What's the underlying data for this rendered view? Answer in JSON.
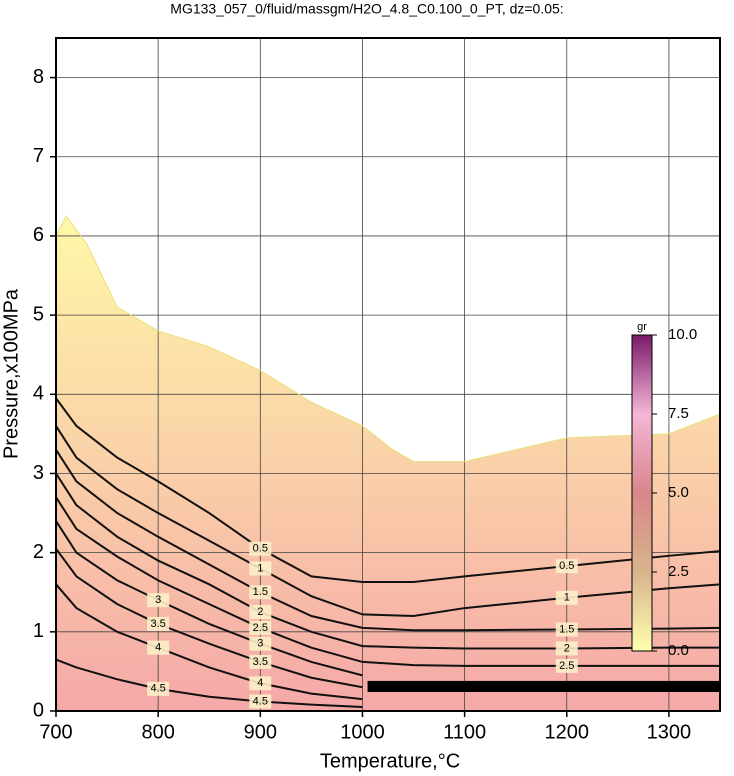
{
  "chart_data": {
    "type": "contour",
    "title": "MG133_057_0/fluid/massgm/H2O_4.8_C0.100_0_PT, dz=0.05:",
    "x_label": "Temperature,°C",
    "y_label": "Pressure,x100MPa",
    "xlim": [
      700,
      1350
    ],
    "ylim": [
      0,
      8.5
    ],
    "xticks": [
      700,
      800,
      900,
      1000,
      1100,
      1200,
      1300
    ],
    "yticks": [
      0,
      1,
      2,
      3,
      4,
      5,
      6,
      7,
      8
    ],
    "grid": true,
    "boundary": {
      "x": [
        700,
        710,
        730,
        760,
        800,
        850,
        900,
        950,
        1000,
        1030,
        1050,
        1100,
        1150,
        1200,
        1300,
        1350
      ],
      "y": [
        6.0,
        6.25,
        5.9,
        5.1,
        4.8,
        4.6,
        4.3,
        3.9,
        3.6,
        3.3,
        3.15,
        3.15,
        3.3,
        3.45,
        3.5,
        3.75
      ]
    },
    "band": {
      "x": [
        1005,
        1350
      ],
      "y": [
        0.24,
        0.38
      ]
    },
    "contours": [
      {
        "level": 0.5,
        "x": [
          700,
          720,
          760,
          800,
          850,
          900,
          950,
          1000,
          1050,
          1100,
          1200,
          1300,
          1350
        ],
        "y": [
          3.95,
          3.6,
          3.2,
          2.9,
          2.5,
          2.05,
          1.7,
          1.63,
          1.63,
          1.7,
          1.83,
          1.96,
          2.02
        ]
      },
      {
        "level": 1,
        "x": [
          700,
          720,
          760,
          800,
          850,
          900,
          950,
          1000,
          1050,
          1100,
          1200,
          1300,
          1350
        ],
        "y": [
          3.6,
          3.2,
          2.8,
          2.5,
          2.15,
          1.8,
          1.45,
          1.22,
          1.2,
          1.3,
          1.43,
          1.55,
          1.6
        ]
      },
      {
        "level": 1.5,
        "x": [
          700,
          720,
          760,
          800,
          850,
          900,
          950,
          1000,
          1050,
          1100,
          1200,
          1300,
          1350
        ],
        "y": [
          3.3,
          2.9,
          2.5,
          2.2,
          1.85,
          1.5,
          1.2,
          1.05,
          1.02,
          1.02,
          1.03,
          1.04,
          1.05
        ]
      },
      {
        "level": 2,
        "x": [
          700,
          720,
          760,
          800,
          850,
          900,
          950,
          1000,
          1050,
          1100,
          1200,
          1300,
          1350
        ],
        "y": [
          3.0,
          2.6,
          2.2,
          1.9,
          1.6,
          1.25,
          1.0,
          0.82,
          0.8,
          0.79,
          0.79,
          0.8,
          0.8
        ]
      },
      {
        "level": 2.5,
        "x": [
          700,
          720,
          760,
          800,
          850,
          900,
          950,
          1000,
          1050,
          1100,
          1200,
          1300,
          1350
        ],
        "y": [
          2.7,
          2.3,
          1.95,
          1.65,
          1.35,
          1.05,
          0.8,
          0.62,
          0.58,
          0.57,
          0.57,
          0.57,
          0.57
        ]
      },
      {
        "level": 3,
        "x": [
          700,
          720,
          760,
          800,
          850,
          900,
          950,
          1000
        ],
        "y": [
          2.4,
          2.0,
          1.65,
          1.4,
          1.1,
          0.85,
          0.62,
          0.45
        ]
      },
      {
        "level": 3.5,
        "x": [
          700,
          720,
          760,
          800,
          850,
          900,
          950,
          1000
        ],
        "y": [
          2.05,
          1.7,
          1.35,
          1.1,
          0.85,
          0.62,
          0.42,
          0.3
        ]
      },
      {
        "level": 4,
        "x": [
          700,
          720,
          760,
          800,
          850,
          900,
          950,
          1000
        ],
        "y": [
          1.6,
          1.3,
          1.0,
          0.8,
          0.55,
          0.35,
          0.22,
          0.15
        ]
      },
      {
        "level": 4.5,
        "x": [
          700,
          720,
          760,
          800,
          850,
          900,
          950,
          1000
        ],
        "y": [
          0.65,
          0.55,
          0.4,
          0.28,
          0.18,
          0.12,
          0.08,
          0.05
        ]
      }
    ],
    "colorbar": {
      "label": "gr",
      "lim": [
        0,
        10
      ],
      "ticks": [
        {
          "value": 0,
          "label": "0.0"
        },
        2.5,
        {
          "value": 5,
          "label": "5.0"
        },
        7.5,
        {
          "value": 10,
          "label": "10.0"
        }
      ],
      "colors": [
        "#ffffb0",
        "#d8b48c",
        "#d9868a",
        "#f5b6d6",
        "#7a1a6a"
      ]
    },
    "field_colors": [
      "#fff8a8",
      "#f5a8a8"
    ]
  }
}
